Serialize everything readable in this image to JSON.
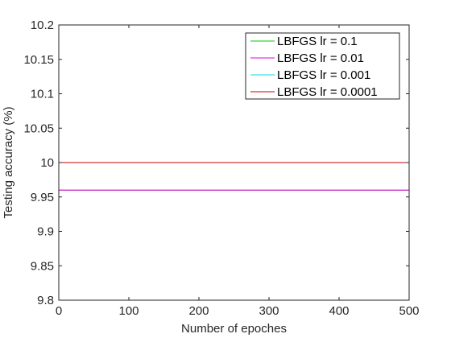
{
  "chart_data": {
    "type": "line",
    "title": "",
    "xlabel": "Number of epoches",
    "ylabel": "Testing accuracy (%)",
    "xlim": [
      0,
      500
    ],
    "ylim": [
      9.8,
      10.2
    ],
    "xticks": [
      0,
      100,
      200,
      300,
      400,
      500
    ],
    "yticks": [
      9.8,
      9.85,
      9.9,
      9.95,
      10,
      10.05,
      10.1,
      10.15,
      10.2
    ],
    "xtick_labels": [
      "0",
      "100",
      "200",
      "300",
      "400",
      "500"
    ],
    "ytick_labels": [
      "9.8",
      "9.85",
      "9.9",
      "9.95",
      "10",
      "10.05",
      "10.1",
      "10.15",
      "10.2"
    ],
    "grid": false,
    "legend_position": "top-right",
    "series": [
      {
        "name": "LBFGS lr = 0.1",
        "color": "#00cc00",
        "x": [
          0,
          500
        ],
        "y": [
          9.96,
          9.96
        ]
      },
      {
        "name": "LBFGS lr = 0.01",
        "color": "#e000e0",
        "x": [
          0,
          500
        ],
        "y": [
          9.96,
          9.96
        ]
      },
      {
        "name": "LBFGS lr = 0.001",
        "color": "#00dddd",
        "x": [
          0,
          500
        ],
        "y": [
          10.0,
          10.0
        ]
      },
      {
        "name": "LBFGS lr = 0.0001",
        "color": "#cc0000",
        "x": [
          0,
          500
        ],
        "y": [
          10.0,
          10.0
        ]
      }
    ]
  }
}
